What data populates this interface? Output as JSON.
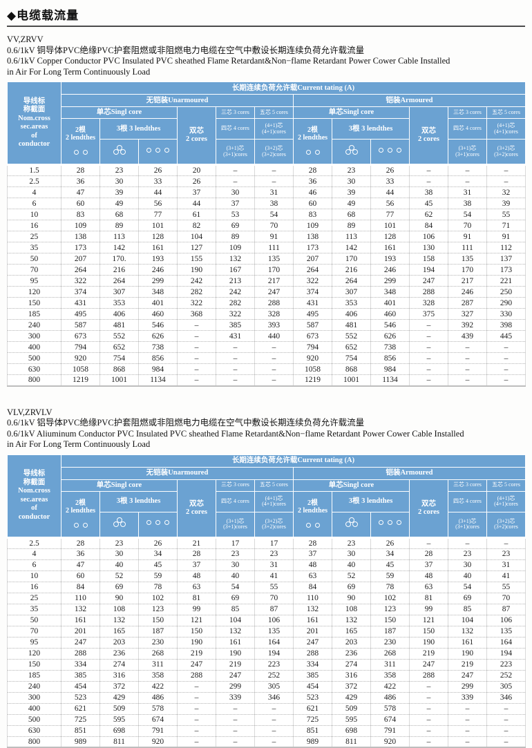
{
  "page": {
    "title": "◆电缆载流量"
  },
  "colors": {
    "header_blue": "#6ba2d2",
    "header_text": "#ffffff",
    "body_text": "#1c1c1c"
  },
  "table_header": {
    "conductor": "导线标\n称截面\nNom.cross\nsec.areas\nof\nconductor",
    "current_rating": "长期连续负荷允许载Current tating (A)",
    "unarmoured": "无铠装Unarmoured",
    "armoured": "铠装Armoured",
    "single_core": "单芯Singl core",
    "two_lengths": "2根\n2 lendthes",
    "three_lengths": "3根 3 lendthes",
    "two_cores": "双芯\n2 cores",
    "three_cores": "三芯 3 cores",
    "four_cores": "四芯 4 cores",
    "three_plus_one": "(3+1)芯\n(3+1)cores",
    "five_cores": "五芯 5 cores",
    "four_plus_one": "(4+1)芯\n(4+1)cores",
    "three_plus_two": "(3+2)芯\n(3+2)cores",
    "icons": {
      "two_lengths": "two-circles",
      "three_lengths_trefoil": "three-circles-trefoil",
      "three_lengths_flat": "three-circles-flat"
    }
  },
  "sections": [
    {
      "model": "VV,ZRVV",
      "desc_cn": "0.6/1kV 铜导体PVC绝缘PVC护套阻燃或非阻燃电力电缆在空气中敷设长期连续负荷允许载流量",
      "desc_en1": "0.6/1kV Copper Conductor PVC Insulated PVC sheathed Flame Retardant&Non−flame Retardant Power Cower Cable Installed",
      "desc_en2": "in Air For Long Term Continuously Load",
      "rows": [
        [
          "1.5",
          "28",
          "23",
          "26",
          "20",
          "–",
          "–",
          "28",
          "23",
          "26",
          "–",
          "–",
          "–"
        ],
        [
          "2.5",
          "36",
          "30",
          "33",
          "26",
          "–",
          "–",
          "36",
          "30",
          "33",
          "–",
          "–",
          "–"
        ],
        [
          "4",
          "47",
          "39",
          "44",
          "37",
          "30",
          "31",
          "46",
          "39",
          "44",
          "38",
          "31",
          "32"
        ],
        [
          "6",
          "60",
          "49",
          "56",
          "44",
          "37",
          "38",
          "60",
          "49",
          "56",
          "45",
          "38",
          "39"
        ],
        [
          "10",
          "83",
          "68",
          "77",
          "61",
          "53",
          "54",
          "83",
          "68",
          "77",
          "62",
          "54",
          "55"
        ],
        [
          "16",
          "109",
          "89",
          "101",
          "82",
          "69",
          "70",
          "109",
          "89",
          "101",
          "84",
          "70",
          "71"
        ],
        [
          "25",
          "138",
          "113",
          "128",
          "104",
          "89",
          "91",
          "138",
          "113",
          "128",
          "106",
          "91",
          "91"
        ],
        [
          "35",
          "173",
          "142",
          "161",
          "127",
          "109",
          "111",
          "173",
          "142",
          "161",
          "130",
          "111",
          "112"
        ],
        [
          "50",
          "207",
          "170.",
          "193",
          "155",
          "132",
          "135",
          "207",
          "170",
          "193",
          "158",
          "135",
          "137"
        ],
        [
          "70",
          "264",
          "216",
          "246",
          "190",
          "167",
          "170",
          "264",
          "216",
          "246",
          "194",
          "170",
          "173"
        ],
        [
          "95",
          "322",
          "264",
          "299",
          "242",
          "213",
          "217",
          "322",
          "264",
          "299",
          "247",
          "217",
          "221"
        ],
        [
          "120",
          "374",
          "307",
          "348",
          "282",
          "242",
          "247",
          "374",
          "307",
          "348",
          "288",
          "246",
          "250"
        ],
        [
          "150",
          "431",
          "353",
          "401",
          "322",
          "282",
          "288",
          "431",
          "353",
          "401",
          "328",
          "287",
          "290"
        ],
        [
          "185",
          "495",
          "406",
          "460",
          "368",
          "322",
          "328",
          "495",
          "406",
          "460",
          "375",
          "327",
          "330"
        ],
        [
          "240",
          "587",
          "481",
          "546",
          "–",
          "385",
          "393",
          "587",
          "481",
          "546",
          "–",
          "392",
          "398"
        ],
        [
          "300",
          "673",
          "552",
          "626",
          "–",
          "431",
          "440",
          "673",
          "552",
          "626",
          "–",
          "439",
          "445"
        ],
        [
          "400",
          "794",
          "652",
          "738",
          "–",
          "–",
          "–",
          "794",
          "652",
          "738",
          "–",
          "–",
          "–"
        ],
        [
          "500",
          "920",
          "754",
          "856",
          "–",
          "–",
          "–",
          "920",
          "754",
          "856",
          "–",
          "–",
          "–"
        ],
        [
          "630",
          "1058",
          "868",
          "984",
          "–",
          "–",
          "–",
          "1058",
          "868",
          "984",
          "–",
          "–",
          "–"
        ],
        [
          "800",
          "1219",
          "1001",
          "1134",
          "–",
          "–",
          "–",
          "1219",
          "1001",
          "1134",
          "–",
          "–",
          "–"
        ]
      ]
    },
    {
      "model": "VLV,ZRVLV",
      "desc_cn": "0.6/1kV 铝导体PVC绝缘PVC护套阻燃或非阻燃电力电缆在空气中敷设长期连续负荷允许载流量",
      "desc_en1": "0.6/1kV Aliuminum Conductor PVC Insulated PVC sheathed Flame Retardant&Non−flame Retardant Power Cower Cable Installed",
      "desc_en2": "in Air For Long Term Continuously Load",
      "rows": [
        [
          "2.5",
          "28",
          "23",
          "26",
          "21",
          "17",
          "17",
          "28",
          "23",
          "26",
          "–",
          "–",
          "–"
        ],
        [
          "4",
          "36",
          "30",
          "34",
          "28",
          "23",
          "23",
          "37",
          "30",
          "34",
          "28",
          "23",
          "23"
        ],
        [
          "6",
          "47",
          "40",
          "45",
          "37",
          "30",
          "31",
          "48",
          "40",
          "45",
          "37",
          "30",
          "31"
        ],
        [
          "10",
          "60",
          "52",
          "59",
          "48",
          "40",
          "41",
          "63",
          "52",
          "59",
          "48",
          "40",
          "41"
        ],
        [
          "16",
          "84",
          "69",
          "78",
          "63",
          "54",
          "55",
          "84",
          "69",
          "78",
          "63",
          "54",
          "55"
        ],
        [
          "25",
          "110",
          "90",
          "102",
          "81",
          "69",
          "70",
          "110",
          "90",
          "102",
          "81",
          "69",
          "70"
        ],
        [
          "35",
          "132",
          "108",
          "123",
          "99",
          "85",
          "87",
          "132",
          "108",
          "123",
          "99",
          "85",
          "87"
        ],
        [
          "50",
          "161",
          "132",
          "150",
          "121",
          "104",
          "106",
          "161",
          "132",
          "150",
          "121",
          "104",
          "106"
        ],
        [
          "70",
          "201",
          "165",
          "187",
          "150",
          "132",
          "135",
          "201",
          "165",
          "187",
          "150",
          "132",
          "135"
        ],
        [
          "95",
          "247",
          "203",
          "230",
          "190",
          "161",
          "164",
          "247",
          "203",
          "230",
          "190",
          "161",
          "164"
        ],
        [
          "120",
          "288",
          "236",
          "268",
          "219",
          "190",
          "194",
          "288",
          "236",
          "268",
          "219",
          "190",
          "194"
        ],
        [
          "150",
          "334",
          "274",
          "311",
          "247",
          "219",
          "223",
          "334",
          "274",
          "311",
          "247",
          "219",
          "223"
        ],
        [
          "185",
          "385",
          "316",
          "358",
          "288",
          "247",
          "252",
          "385",
          "316",
          "358",
          "288",
          "247",
          "252"
        ],
        [
          "240",
          "454",
          "372",
          "422",
          "–",
          "299",
          "305",
          "454",
          "372",
          "422",
          "–",
          "299",
          "305"
        ],
        [
          "300",
          "523",
          "429",
          "486",
          "–",
          "339",
          "346",
          "523",
          "429",
          "486",
          "–",
          "339",
          "346"
        ],
        [
          "400",
          "621",
          "509",
          "578",
          "–",
          "–",
          "–",
          "621",
          "509",
          "578",
          "–",
          "–",
          "–"
        ],
        [
          "500",
          "725",
          "595",
          "674",
          "–",
          "–",
          "–",
          "725",
          "595",
          "674",
          "–",
          "–",
          "–"
        ],
        [
          "630",
          "851",
          "698",
          "791",
          "–",
          "–",
          "–",
          "851",
          "698",
          "791",
          "–",
          "–",
          "–"
        ],
        [
          "800",
          "989",
          "811",
          "920",
          "–",
          "–",
          "–",
          "989",
          "811",
          "920",
          "–",
          "–",
          "–"
        ]
      ]
    }
  ]
}
